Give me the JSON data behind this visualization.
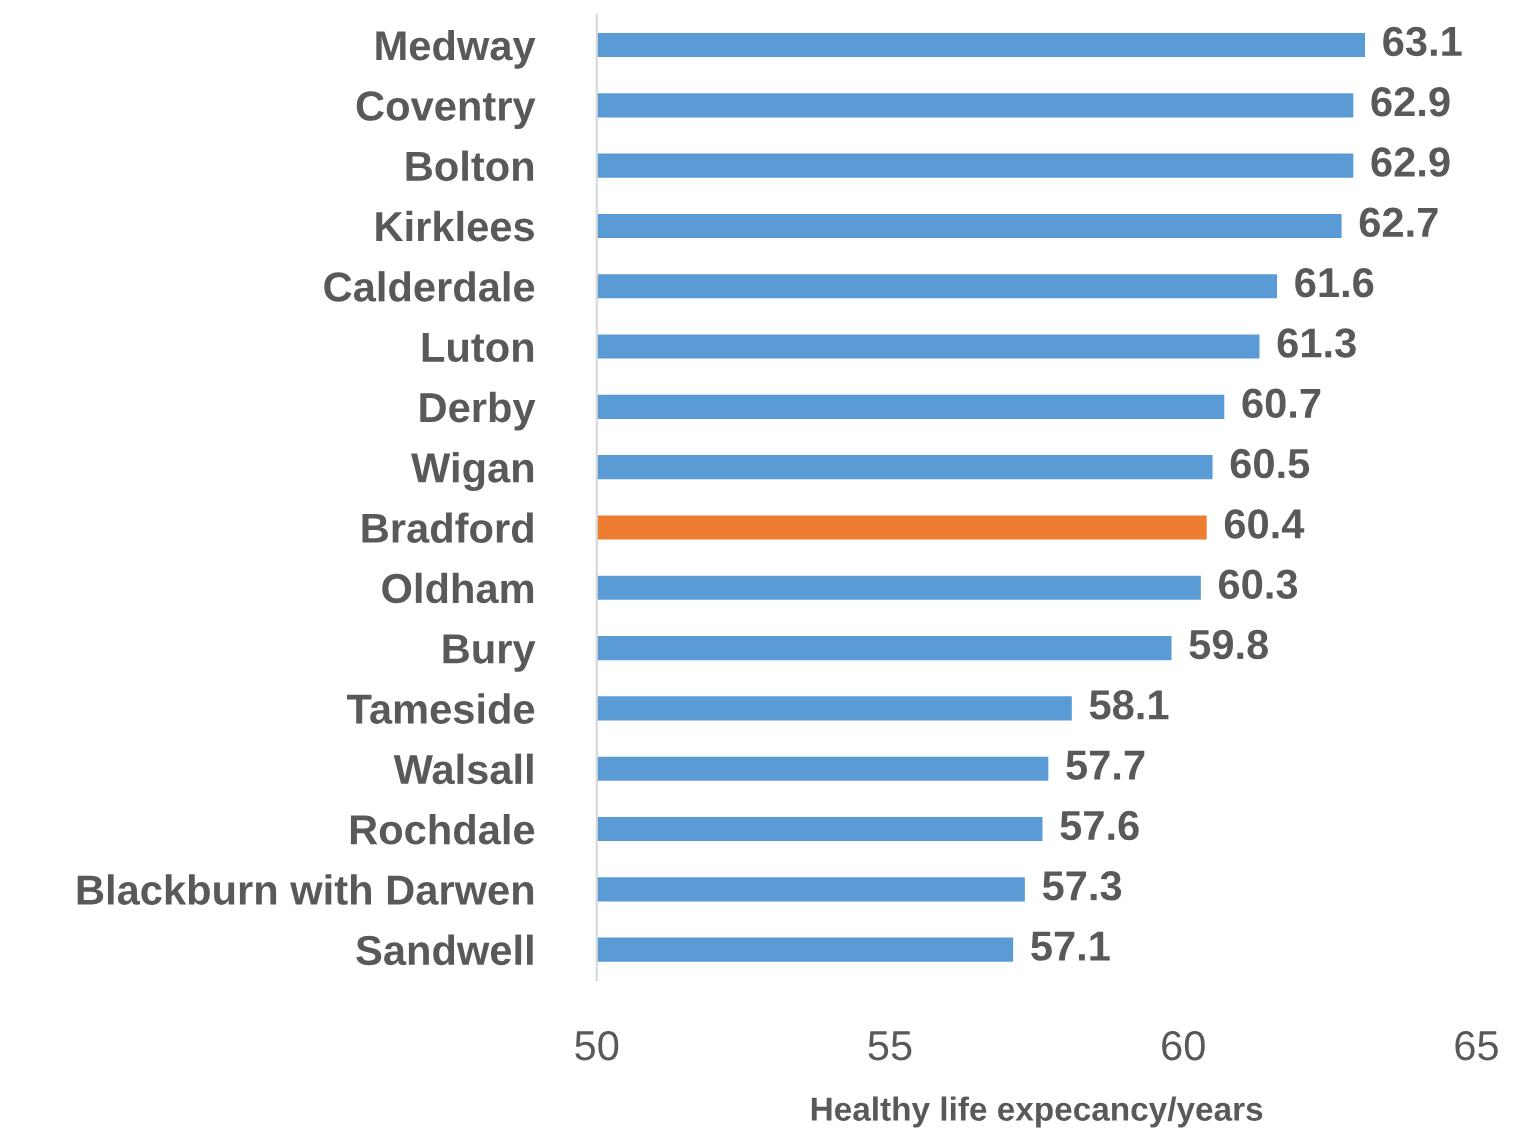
{
  "chart_data": {
    "type": "bar",
    "orientation": "horizontal",
    "xlabel": "Healthy life expecancy/years",
    "categories": [
      "Medway",
      "Coventry",
      "Bolton",
      "Kirklees",
      "Calderdale",
      "Luton",
      "Derby",
      "Wigan",
      "Bradford",
      "Oldham",
      "Bury",
      "Tameside",
      "Walsall",
      "Rochdale",
      "Blackburn with Darwen",
      "Sandwell"
    ],
    "values": [
      63.1,
      62.9,
      62.9,
      62.7,
      61.6,
      61.3,
      60.7,
      60.5,
      60.4,
      60.3,
      59.8,
      58.1,
      57.7,
      57.6,
      57.3,
      57.1
    ],
    "colors": [
      "#5b9bd5",
      "#5b9bd5",
      "#5b9bd5",
      "#5b9bd5",
      "#5b9bd5",
      "#5b9bd5",
      "#5b9bd5",
      "#5b9bd5",
      "#ed7d31",
      "#5b9bd5",
      "#5b9bd5",
      "#5b9bd5",
      "#5b9bd5",
      "#5b9bd5",
      "#5b9bd5",
      "#5b9bd5"
    ],
    "xlim": [
      50,
      65
    ],
    "xticks": [
      50,
      55,
      60,
      65
    ],
    "data_labels": true,
    "grid": false,
    "legend": false
  }
}
